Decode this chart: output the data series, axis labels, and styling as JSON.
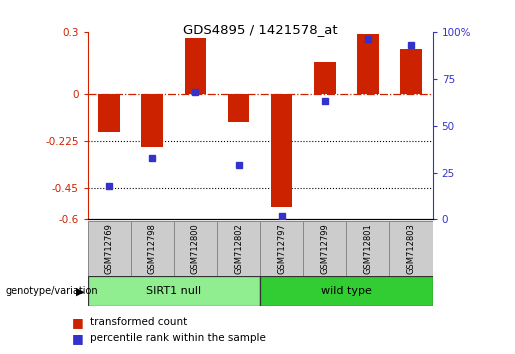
{
  "title": "GDS4895 / 1421578_at",
  "samples": [
    "GSM712769",
    "GSM712798",
    "GSM712800",
    "GSM712802",
    "GSM712797",
    "GSM712799",
    "GSM712801",
    "GSM712803"
  ],
  "red_values": [
    -0.18,
    -0.25,
    0.27,
    -0.13,
    -0.54,
    0.155,
    0.29,
    0.22
  ],
  "blue_pct": [
    18,
    33,
    68,
    29,
    2,
    63,
    96,
    93
  ],
  "groups": [
    {
      "label": "SIRT1 null",
      "start": 0,
      "end": 4,
      "color": "#90EE90"
    },
    {
      "label": "wild type",
      "start": 4,
      "end": 8,
      "color": "#32CD32"
    }
  ],
  "ylim_left": [
    -0.6,
    0.3
  ],
  "ylim_right": [
    0,
    100
  ],
  "yticks_left": [
    0.3,
    0.0,
    -0.225,
    -0.45,
    -0.6
  ],
  "ytick_labels_left": [
    "0.3",
    "0",
    "-0.225",
    "-0.45",
    "-0.6"
  ],
  "yticks_right": [
    100,
    75,
    50,
    25,
    0
  ],
  "ytick_labels_right": [
    "100%",
    "75",
    "50",
    "25",
    "0"
  ],
  "hlines_dotted": [
    -0.225,
    -0.45
  ],
  "red_color": "#CC2200",
  "blue_color": "#3333CC",
  "bar_width": 0.5,
  "legend_red": "transformed count",
  "legend_blue": "percentile rank within the sample",
  "genotype_label": "genotype/variation"
}
